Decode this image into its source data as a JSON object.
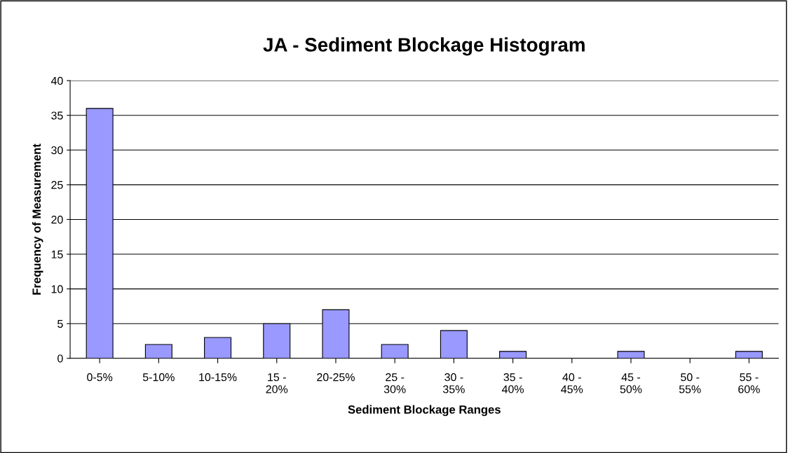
{
  "chart_data": {
    "type": "bar",
    "title": "JA - Sediment Blockage Histogram",
    "xlabel": "Sediment Blockage Ranges",
    "ylabel": "Frequency of Measurement",
    "categories": [
      "0-5%",
      "5-10%",
      "10-15%",
      "15 - 20%",
      "20-25%",
      "25 - 30%",
      "30 - 35%",
      "35 - 40%",
      "40 - 45%",
      "45 - 50%",
      "50 - 55%",
      "55 - 60%"
    ],
    "values": [
      36,
      2,
      3,
      5,
      7,
      2,
      4,
      1,
      0,
      1,
      0,
      1
    ],
    "color": "#9999ff",
    "ylim": [
      0,
      40
    ],
    "yticks": [
      0,
      5,
      10,
      15,
      20,
      25,
      30,
      35,
      40
    ],
    "grid": "y",
    "legend": false
  }
}
